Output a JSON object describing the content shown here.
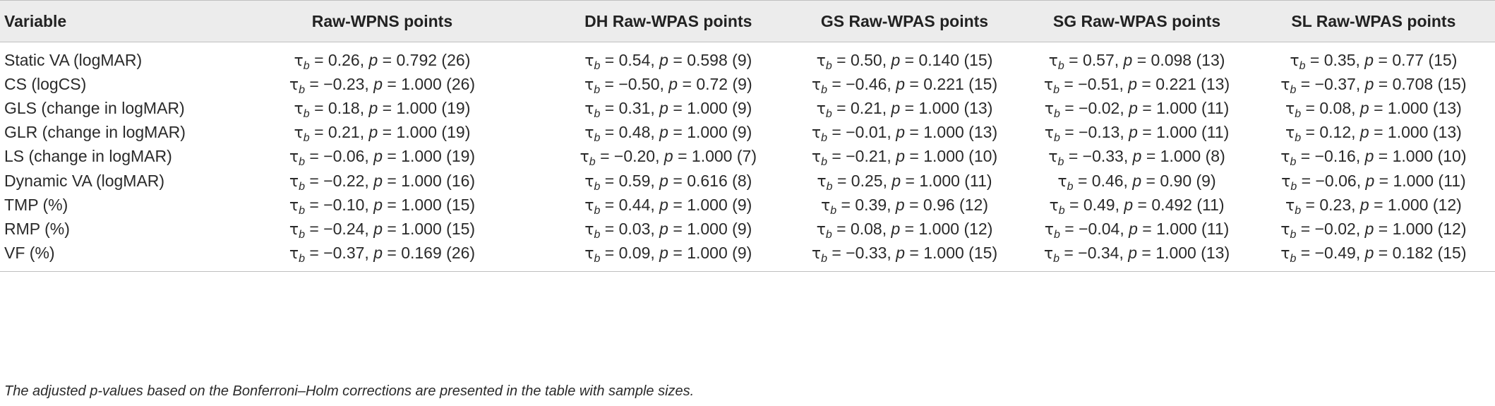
{
  "table": {
    "headers": [
      "Variable",
      "Raw-WPNS points",
      "DH Raw-WPAS points",
      "GS Raw-WPAS points",
      "SG Raw-WPAS points",
      "SL Raw-WPAS points"
    ],
    "stat_symbol": "τ",
    "stat_subscript": "b",
    "p_symbol": "p",
    "rows": [
      {
        "variable": "Static VA (logMAR)",
        "cells": [
          {
            "tau": "0.26",
            "p": "0.792",
            "n": "26"
          },
          {
            "tau": "0.54",
            "p": "0.598",
            "n": "9"
          },
          {
            "tau": "0.50",
            "p": "0.140",
            "n": "15"
          },
          {
            "tau": "0.57",
            "p": "0.098",
            "n": "13"
          },
          {
            "tau": "0.35",
            "p": "0.77",
            "n": "15"
          }
        ]
      },
      {
        "variable": "CS (logCS)",
        "cells": [
          {
            "tau": "−0.23",
            "p": "1.000",
            "n": "26"
          },
          {
            "tau": "−0.50",
            "p": "0.72",
            "n": "9"
          },
          {
            "tau": "−0.46",
            "p": "0.221",
            "n": "15"
          },
          {
            "tau": "−0.51",
            "p": "0.221",
            "n": "13"
          },
          {
            "tau": "−0.37",
            "p": "0.708",
            "n": "15"
          }
        ]
      },
      {
        "variable": "GLS (change in logMAR)",
        "cells": [
          {
            "tau": "0.18",
            "p": "1.000",
            "n": "19"
          },
          {
            "tau": "0.31",
            "p": "1.000",
            "n": "9"
          },
          {
            "tau": "0.21",
            "p": "1.000",
            "n": "13"
          },
          {
            "tau": "−0.02",
            "p": "1.000",
            "n": "11"
          },
          {
            "tau": "0.08",
            "p": "1.000",
            "n": "13"
          }
        ]
      },
      {
        "variable": "GLR (change in logMAR)",
        "cells": [
          {
            "tau": "0.21",
            "p": "1.000",
            "n": "19"
          },
          {
            "tau": "0.48",
            "p": "1.000",
            "n": "9"
          },
          {
            "tau": "−0.01",
            "p": "1.000",
            "n": "13"
          },
          {
            "tau": "−0.13",
            "p": "1.000",
            "n": "11"
          },
          {
            "tau": "0.12",
            "p": "1.000",
            "n": "13"
          }
        ]
      },
      {
        "variable": "LS (change in logMAR)",
        "cells": [
          {
            "tau": "−0.06",
            "p": "1.000",
            "n": "19"
          },
          {
            "tau": "−0.20",
            "p": "1.000",
            "n": "7"
          },
          {
            "tau": "−0.21",
            "p": "1.000",
            "n": "10"
          },
          {
            "tau": "−0.33",
            "p": "1.000",
            "n": "8"
          },
          {
            "tau": "−0.16",
            "p": "1.000",
            "n": "10"
          }
        ]
      },
      {
        "variable": "Dynamic VA (logMAR)",
        "cells": [
          {
            "tau": "−0.22",
            "p": "1.000",
            "n": "16"
          },
          {
            "tau": "0.59",
            "p": "0.616",
            "n": "8"
          },
          {
            "tau": "0.25",
            "p": "1.000",
            "n": "11"
          },
          {
            "tau": "0.46",
            "p": "0.90",
            "n": "9"
          },
          {
            "tau": "−0.06",
            "p": "1.000",
            "n": "11"
          }
        ]
      },
      {
        "variable": "TMP (%)",
        "cells": [
          {
            "tau": "−0.10",
            "p": "1.000",
            "n": "15"
          },
          {
            "tau": "0.44",
            "p": "1.000",
            "n": "9"
          },
          {
            "tau": "0.39",
            "p": "0.96",
            "n": "12"
          },
          {
            "tau": "0.49",
            "p": "0.492",
            "n": "11"
          },
          {
            "tau": "0.23",
            "p": "1.000",
            "n": "12"
          }
        ]
      },
      {
        "variable": "RMP (%)",
        "cells": [
          {
            "tau": "−0.24",
            "p": "1.000",
            "n": "15"
          },
          {
            "tau": "0.03",
            "p": "1.000",
            "n": "9"
          },
          {
            "tau": "0.08",
            "p": "1.000",
            "n": "12"
          },
          {
            "tau": "−0.04",
            "p": "1.000",
            "n": "11"
          },
          {
            "tau": "−0.02",
            "p": "1.000",
            "n": "12"
          }
        ]
      },
      {
        "variable": "VF (%)",
        "cells": [
          {
            "tau": "−0.37",
            "p": "0.169",
            "n": "26"
          },
          {
            "tau": "0.09",
            "p": "1.000",
            "n": "9"
          },
          {
            "tau": "−0.33",
            "p": "1.000",
            "n": "15"
          },
          {
            "tau": "−0.34",
            "p": "1.000",
            "n": "13"
          },
          {
            "tau": "−0.49",
            "p": "0.182",
            "n": "15"
          }
        ]
      }
    ]
  },
  "footnote": "The adjusted p-values based on the Bonferroni–Holm corrections are presented in the table with sample sizes.",
  "colors": {
    "header_background": "#ececec",
    "rule": "#bfbfbf",
    "text": "#222222"
  }
}
